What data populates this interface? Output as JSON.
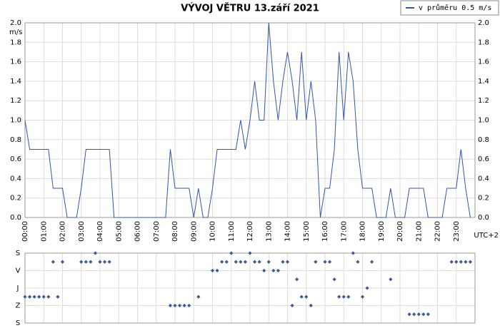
{
  "chart_data": [
    {
      "type": "line",
      "title": "VÝVOJ VĚTRU  13.září 2021",
      "ylabel": "m/s",
      "xlabel": "UTC+2",
      "x": [
        0,
        0.25,
        0.5,
        0.75,
        1,
        1.25,
        1.5,
        1.75,
        2,
        2.25,
        2.5,
        2.75,
        3,
        3.25,
        3.5,
        3.75,
        4,
        4.25,
        4.5,
        4.75,
        5,
        5.25,
        5.5,
        5.75,
        6,
        6.25,
        6.5,
        6.75,
        7,
        7.25,
        7.5,
        7.75,
        8,
        8.25,
        8.5,
        8.75,
        9,
        9.25,
        9.5,
        9.75,
        10,
        10.25,
        10.5,
        10.75,
        11,
        11.25,
        11.5,
        11.75,
        12,
        12.25,
        12.5,
        12.75,
        13,
        13.25,
        13.5,
        13.75,
        14,
        14.25,
        14.5,
        14.75,
        15,
        15.25,
        15.5,
        15.75,
        16,
        16.25,
        16.5,
        16.75,
        17,
        17.25,
        17.5,
        17.75,
        18,
        18.25,
        18.5,
        18.75,
        19,
        19.25,
        19.5,
        19.75,
        20,
        20.25,
        20.5,
        20.75,
        21,
        21.25,
        21.5,
        21.75,
        22,
        22.25,
        22.5,
        22.75,
        23,
        23.25,
        23.5,
        23.75
      ],
      "series": [
        {
          "name": "v průměru 0.5 m/s",
          "color": "#3355aa",
          "values": [
            1.0,
            0.7,
            0.7,
            0.7,
            0.7,
            0.7,
            0.3,
            0.3,
            0.3,
            0,
            0,
            0,
            0.3,
            0.7,
            0.7,
            0.7,
            0.7,
            0.7,
            0.7,
            0,
            0,
            0,
            0,
            0,
            0,
            0,
            0,
            0,
            0,
            0,
            0,
            0.7,
            0.3,
            0.3,
            0.3,
            0.3,
            0,
            0.3,
            0,
            0,
            0.3,
            0.7,
            0.7,
            0.7,
            0.7,
            0.7,
            1.0,
            0.7,
            1.0,
            1.4,
            1.0,
            1.0,
            2.0,
            1.4,
            1.0,
            1.4,
            1.7,
            1.4,
            1.0,
            1.7,
            1.0,
            1.4,
            1.0,
            0,
            0.3,
            0.3,
            0.7,
            1.7,
            1.0,
            1.7,
            1.4,
            0.7,
            0.3,
            0.3,
            0.3,
            0,
            0,
            0,
            0.3,
            0,
            0,
            0,
            0.3,
            0.3,
            0.3,
            0.3,
            0,
            0,
            0,
            0,
            0.3,
            0.3,
            0.3,
            0.7,
            0.3,
            0
          ]
        }
      ],
      "xlim": [
        0,
        24
      ],
      "xticks": [
        {
          "value": 0,
          "label": "00:00"
        },
        {
          "value": 1,
          "label": "01:00"
        },
        {
          "value": 2,
          "label": "02:00"
        },
        {
          "value": 3,
          "label": "03:00"
        },
        {
          "value": 4,
          "label": "04:00"
        },
        {
          "value": 5,
          "label": "05:00"
        },
        {
          "value": 6,
          "label": "06:00"
        },
        {
          "value": 7,
          "label": "07:00"
        },
        {
          "value": 8,
          "label": "08:00"
        },
        {
          "value": 9,
          "label": "09:00"
        },
        {
          "value": 10,
          "label": "10:00"
        },
        {
          "value": 11,
          "label": "11:00"
        },
        {
          "value": 12,
          "label": "12:00"
        },
        {
          "value": 13,
          "label": "13:00"
        },
        {
          "value": 14,
          "label": "14:00"
        },
        {
          "value": 15,
          "label": "15:00"
        },
        {
          "value": 16,
          "label": "16:00"
        },
        {
          "value": 17,
          "label": "17:00"
        },
        {
          "value": 18,
          "label": "18:00"
        },
        {
          "value": 19,
          "label": "19:00"
        },
        {
          "value": 20,
          "label": "20:00"
        },
        {
          "value": 21,
          "label": "21:00"
        },
        {
          "value": 22,
          "label": "22:00"
        },
        {
          "value": 23,
          "label": "23:00"
        }
      ],
      "ylim": [
        0,
        2
      ],
      "yticks": [
        {
          "value": 0,
          "label": "0.0"
        },
        0.2,
        0.4,
        0.6,
        0.8,
        {
          "value": 1,
          "label": "1.0"
        },
        1.2,
        1.4,
        1.6,
        1.8,
        {
          "value": 2,
          "label": "2.0"
        }
      ],
      "grid": true,
      "legend": "top-right"
    },
    {
      "type": "scatter",
      "x": [
        0,
        0.25,
        0.5,
        0.75,
        1,
        1.25,
        1.5,
        1.75,
        2,
        2.25,
        2.5,
        2.75,
        3,
        3.25,
        3.5,
        3.75,
        4,
        4.25,
        4.5,
        4.75,
        5,
        5.25,
        5.5,
        5.75,
        6,
        6.25,
        6.5,
        6.75,
        7,
        7.25,
        7.5,
        7.75,
        8,
        8.25,
        8.5,
        8.75,
        9,
        9.25,
        9.5,
        9.75,
        10,
        10.25,
        10.5,
        10.75,
        11,
        11.25,
        11.5,
        11.75,
        12,
        12.25,
        12.5,
        12.75,
        13,
        13.25,
        13.5,
        13.75,
        14,
        14.25,
        14.5,
        14.75,
        15,
        15.25,
        15.5,
        15.75,
        16,
        16.25,
        16.5,
        16.75,
        17,
        17.25,
        17.5,
        17.75,
        18,
        18.25,
        18.5,
        18.75,
        19,
        19.25,
        19.5,
        19.75,
        20,
        20.25,
        20.5,
        20.75,
        21,
        21.25,
        21.5,
        21.75,
        22,
        22.25,
        22.5,
        22.75,
        23,
        23.25,
        23.5,
        23.75
      ],
      "series": [
        {
          "color": "#3a5a9a",
          "values": [
            225,
            225,
            225,
            225,
            225,
            225,
            45,
            225,
            45,
            null,
            null,
            null,
            45,
            45,
            45,
            0,
            45,
            45,
            45,
            null,
            null,
            null,
            null,
            null,
            null,
            null,
            null,
            null,
            null,
            null,
            null,
            270,
            270,
            270,
            270,
            270,
            null,
            225,
            null,
            null,
            90,
            90,
            45,
            45,
            0,
            45,
            45,
            45,
            0,
            45,
            45,
            90,
            45,
            90,
            90,
            45,
            45,
            270,
            135,
            225,
            225,
            270,
            45,
            null,
            45,
            45,
            135,
            225,
            225,
            225,
            0,
            45,
            225,
            180,
            45,
            null,
            null,
            null,
            135,
            null,
            null,
            null,
            315,
            315,
            315,
            315,
            315,
            null,
            null,
            null,
            null,
            45,
            45,
            45,
            45,
            45
          ]
        }
      ],
      "xlim": [
        0,
        24
      ],
      "xticks": [
        0,
        1,
        2,
        3,
        4,
        5,
        6,
        7,
        8,
        9,
        10,
        11,
        12,
        13,
        14,
        15,
        16,
        17,
        18,
        19,
        20,
        21,
        22,
        23
      ],
      "ylim": [
        0,
        360
      ],
      "yticks": [
        {
          "value": 0,
          "label": "S"
        },
        {
          "value": 90,
          "label": "V"
        },
        {
          "value": 180,
          "label": "J"
        },
        {
          "value": 270,
          "label": "Z"
        },
        {
          "value": 360,
          "label": "S"
        }
      ],
      "grid": true
    }
  ]
}
